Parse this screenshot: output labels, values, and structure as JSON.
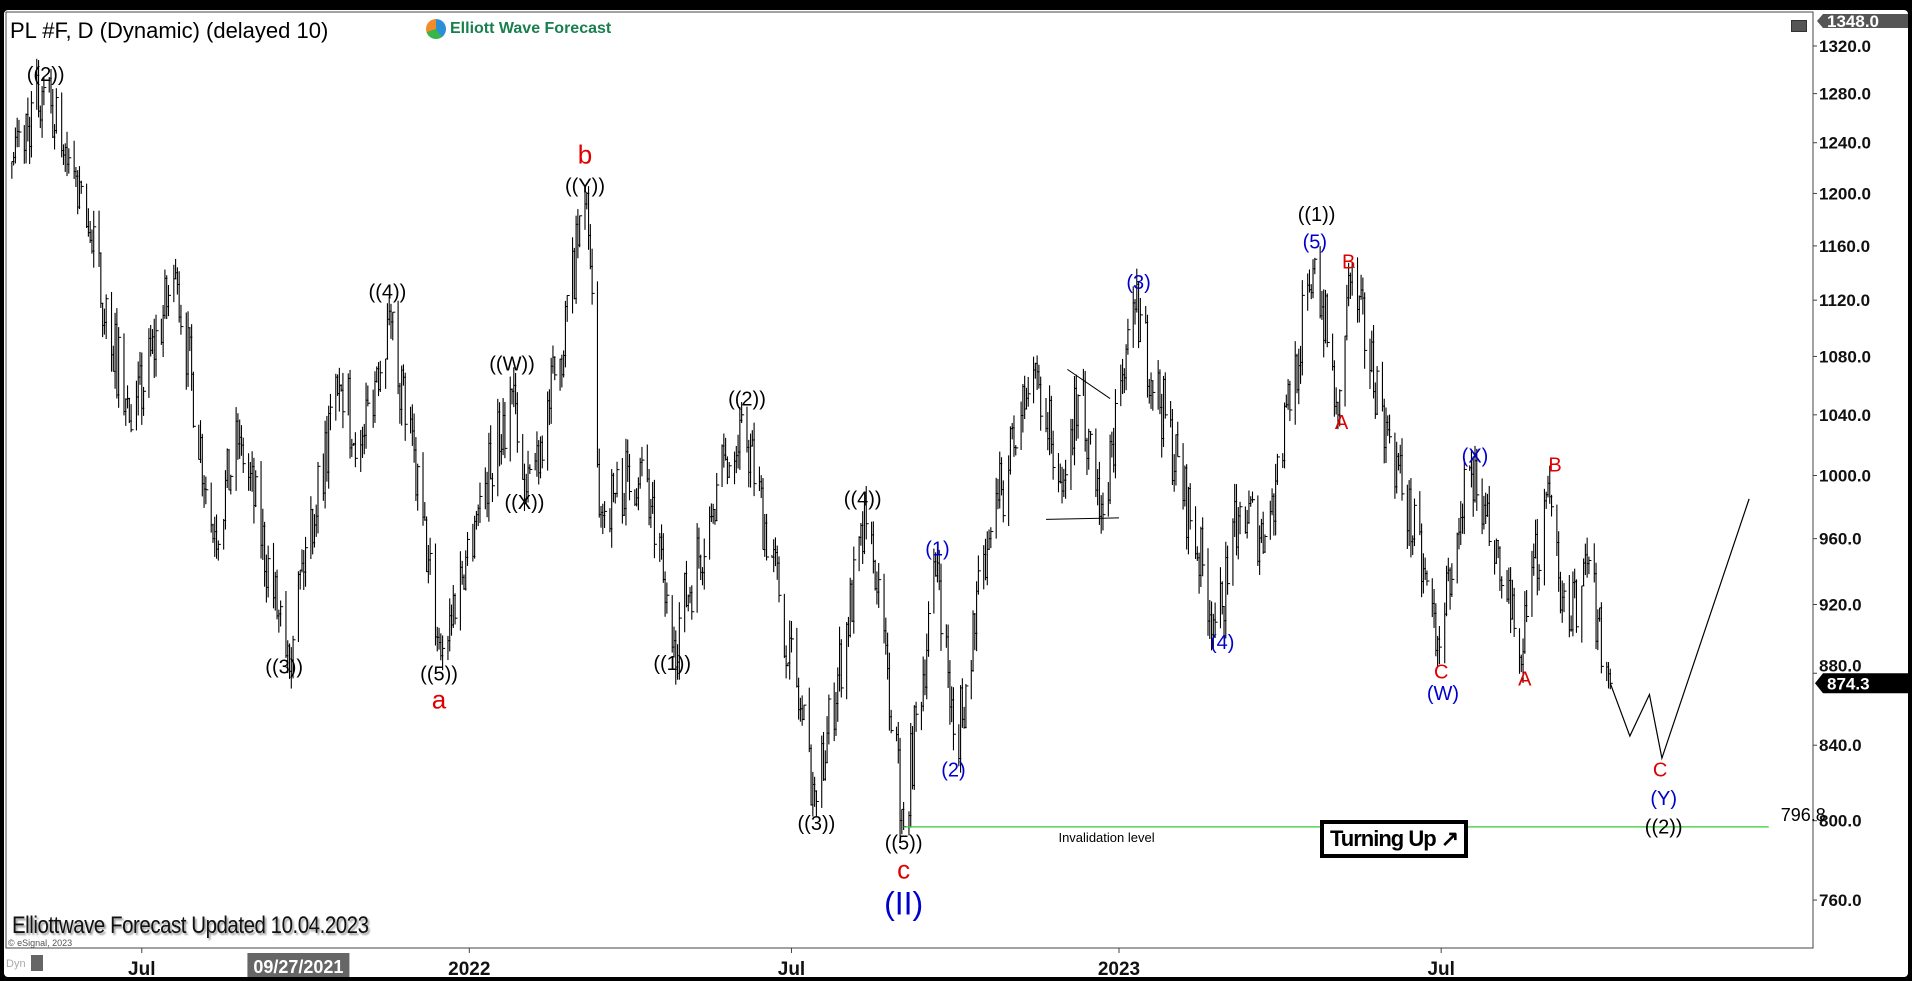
{
  "header": {
    "title": "PL #F, D (Dynamic) (delayed 10)",
    "logo": "Elliott Wave Forecast"
  },
  "footer": {
    "updated": "Elliottwave Forecast Updated 10.04.2023",
    "copyright": "© eSignal, 2023",
    "dyn": "Dyn"
  },
  "badge": {
    "turning_up": "Turning Up ↗"
  },
  "colors": {
    "black": "#000000",
    "red": "#e00000",
    "blue": "#0000cc",
    "invalidation": "#33cc33"
  },
  "chart_data": {
    "type": "bar",
    "symbol": "PL #F",
    "y_scale": "log",
    "ylim": [
      735,
      1350
    ],
    "y_ticks": [
      1320,
      1280,
      1240,
      1200,
      1160,
      1120,
      1080,
      1040,
      1000,
      960,
      920,
      880,
      840,
      800,
      760
    ],
    "y_tick_labels": [
      "1320.0",
      "1280.0",
      "1240.0",
      "1200.0",
      "1160.0",
      "1120.0",
      "1080.0",
      "1040.0",
      "1000.0",
      "960.0",
      "920.0",
      "880.0",
      "840.0",
      "800.0",
      "760.0"
    ],
    "top_price_label": "1348.0",
    "last_price": 874.3,
    "last_price_label": "874.3",
    "x_ticks": [
      {
        "date": "2021-07-01",
        "label": "Jul"
      },
      {
        "date": "2022-01-01",
        "label": "2022"
      },
      {
        "date": "2022-07-01",
        "label": "Jul"
      },
      {
        "date": "2023-01-01",
        "label": "2023"
      },
      {
        "date": "2023-07-01",
        "label": "Jul"
      }
    ],
    "cursor_date_label": {
      "date": "2021-09-27",
      "label": "09/27/2021"
    },
    "grid": false,
    "price_path": [
      [
        "2021-04-19",
        1225
      ],
      [
        "2021-05-07",
        1285
      ],
      [
        "2021-06-01",
        1170
      ],
      [
        "2021-06-25",
        1030
      ],
      [
        "2021-07-20",
        1140
      ],
      [
        "2021-08-10",
        960
      ],
      [
        "2021-08-25",
        1025
      ],
      [
        "2021-09-20",
        890
      ],
      [
        "2021-10-20",
        1060
      ],
      [
        "2021-11-01",
        1020
      ],
      [
        "2021-11-17",
        1112
      ],
      [
        "2021-12-16",
        890
      ],
      [
        "2022-01-05",
        975
      ],
      [
        "2022-01-26",
        1060
      ],
      [
        "2022-02-01",
        985
      ],
      [
        "2022-02-20",
        1070
      ],
      [
        "2022-03-08",
        1200
      ],
      [
        "2022-03-15",
        975
      ],
      [
        "2022-04-08",
        1010
      ],
      [
        "2022-04-25",
        895
      ],
      [
        "2022-05-15",
        970
      ],
      [
        "2022-06-03",
        1040
      ],
      [
        "2022-06-25",
        920
      ],
      [
        "2022-07-15",
        810
      ],
      [
        "2022-08-13",
        975
      ],
      [
        "2022-09-02",
        797
      ],
      [
        "2022-09-21",
        945
      ],
      [
        "2022-10-01",
        835
      ],
      [
        "2022-10-20",
        960
      ],
      [
        "2022-11-15",
        1075
      ],
      [
        "2022-11-30",
        990
      ],
      [
        "2022-12-10",
        1060
      ],
      [
        "2022-12-23",
        975
      ],
      [
        "2023-01-09",
        1118
      ],
      [
        "2023-02-25",
        905
      ],
      [
        "2023-03-10",
        980
      ],
      [
        "2023-03-25",
        960
      ],
      [
        "2023-04-21",
        1150
      ],
      [
        "2023-05-04",
        1040
      ],
      [
        "2023-05-10",
        1138
      ],
      [
        "2023-06-01",
        1030
      ],
      [
        "2023-06-30",
        895
      ],
      [
        "2023-07-17",
        1005
      ],
      [
        "2023-08-15",
        885
      ],
      [
        "2023-08-30",
        995
      ],
      [
        "2023-09-10",
        900
      ],
      [
        "2023-09-20",
        950
      ],
      [
        "2023-10-04",
        874.3
      ]
    ],
    "projection_path": [
      [
        "2023-10-04",
        874.3
      ],
      [
        "2023-10-15",
        845
      ],
      [
        "2023-10-26",
        868
      ],
      [
        "2023-11-02",
        833
      ],
      [
        "2023-12-21",
        985
      ]
    ],
    "triangle_lines": [
      [
        [
          "2022-12-03",
          1071
        ],
        [
          "2022-12-27",
          1051
        ]
      ],
      [
        [
          "2022-11-21",
          972
        ],
        [
          "2023-01-01",
          973
        ]
      ]
    ],
    "invalidation": {
      "price": 796.8,
      "label": "796.8",
      "text": "Invalidation level",
      "from": "2022-09-02",
      "to": "2024-01-01"
    },
    "annotations": [
      {
        "text": "((2))",
        "date": "2021-05-08",
        "price": 1295,
        "color": "black"
      },
      {
        "text": "((3))",
        "date": "2021-09-19",
        "price": 883,
        "color": "black"
      },
      {
        "text": "((4))",
        "date": "2021-11-16",
        "price": 1125,
        "color": "black"
      },
      {
        "text": "((5))",
        "date": "2021-12-15",
        "price": 879,
        "color": "black"
      },
      {
        "text": "a",
        "date": "2021-12-15",
        "price": 864,
        "color": "red",
        "big": true
      },
      {
        "text": "((W))",
        "date": "2022-01-25",
        "price": 1074,
        "color": "black"
      },
      {
        "text": "((X))",
        "date": "2022-02-01",
        "price": 982,
        "color": "black"
      },
      {
        "text": "((Y))",
        "date": "2022-03-07",
        "price": 1205,
        "color": "black"
      },
      {
        "text": "b",
        "date": "2022-03-07",
        "price": 1229,
        "color": "red",
        "big": true
      },
      {
        "text": "((1))",
        "date": "2022-04-25",
        "price": 885,
        "color": "black"
      },
      {
        "text": "((2))",
        "date": "2022-06-06",
        "price": 1050,
        "color": "black"
      },
      {
        "text": "((3))",
        "date": "2022-07-15",
        "price": 798,
        "color": "black"
      },
      {
        "text": "((4))",
        "date": "2022-08-10",
        "price": 984,
        "color": "black"
      },
      {
        "text": "((5))",
        "date": "2022-09-02",
        "price": 788,
        "color": "black"
      },
      {
        "text": "c",
        "date": "2022-09-02",
        "price": 775,
        "color": "red",
        "big": true
      },
      {
        "text": "(II)",
        "date": "2022-09-02",
        "price": 761,
        "color": "blue",
        "big": true
      },
      {
        "text": "(1)",
        "date": "2022-09-21",
        "price": 953,
        "color": "blue"
      },
      {
        "text": "(2)",
        "date": "2022-09-30",
        "price": 826,
        "color": "blue"
      },
      {
        "text": "(3)",
        "date": "2023-01-12",
        "price": 1132,
        "color": "blue"
      },
      {
        "text": "(4)",
        "date": "2023-02-28",
        "price": 897,
        "color": "blue"
      },
      {
        "text": "((1))",
        "date": "2023-04-22",
        "price": 1183,
        "color": "black"
      },
      {
        "text": "(5)",
        "date": "2023-04-21",
        "price": 1162,
        "color": "blue"
      },
      {
        "text": "B",
        "date": "2023-05-10",
        "price": 1147,
        "color": "red"
      },
      {
        "text": "A",
        "date": "2023-05-06",
        "price": 1034,
        "color": "red"
      },
      {
        "text": "C",
        "date": "2023-07-01",
        "price": 880,
        "color": "red"
      },
      {
        "text": "(W)",
        "date": "2023-07-02",
        "price": 868,
        "color": "blue"
      },
      {
        "text": "(X)",
        "date": "2023-07-20",
        "price": 1012,
        "color": "blue"
      },
      {
        "text": "A",
        "date": "2023-08-17",
        "price": 876,
        "color": "red"
      },
      {
        "text": "B",
        "date": "2023-09-03",
        "price": 1006,
        "color": "red"
      },
      {
        "text": "C",
        "date": "2023-11-01",
        "price": 826,
        "color": "red"
      },
      {
        "text": "(Y)",
        "date": "2023-11-03",
        "price": 811,
        "color": "blue"
      },
      {
        "text": "((2))",
        "date": "2023-11-03",
        "price": 796,
        "color": "black"
      }
    ]
  }
}
